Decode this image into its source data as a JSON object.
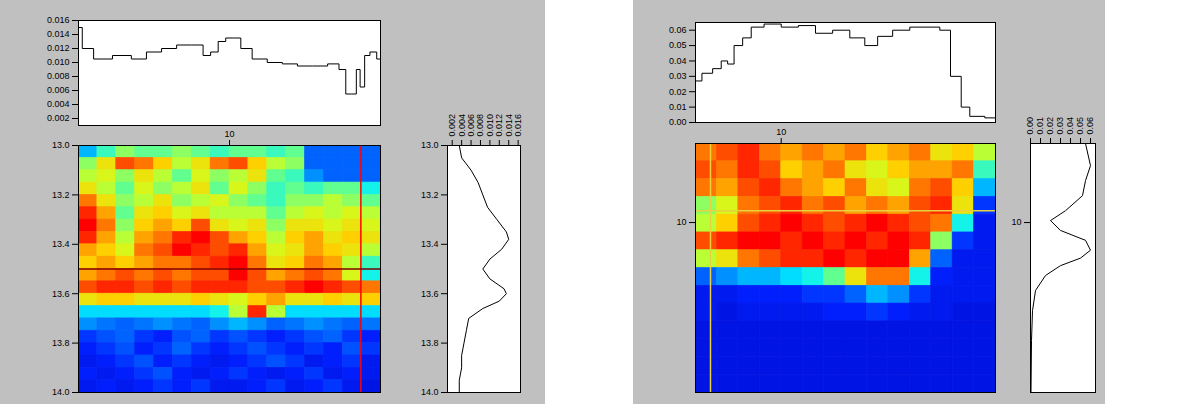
{
  "chart_data": [
    {
      "type": "line",
      "color": "#000000",
      "tick_labels": "y",
      "x": [
        0,
        0.5,
        1.5,
        3,
        4,
        5,
        6,
        7,
        8,
        8.5,
        9,
        9.5,
        10,
        10.5,
        11,
        12,
        13,
        14,
        15,
        16,
        17,
        17.5,
        17.9,
        18.3,
        18.5,
        18.8,
        19.1,
        19.5,
        20
      ],
      "values": [
        0.015,
        0.012,
        0.0105,
        0.011,
        0.0105,
        0.0115,
        0.012,
        0.0125,
        0.0125,
        0.011,
        0.0115,
        0.013,
        0.0135,
        0.0135,
        0.012,
        0.0105,
        0.01,
        0.0098,
        0.0095,
        0.0095,
        0.0098,
        0.009,
        0.0055,
        0.0055,
        0.009,
        0.0065,
        0.011,
        0.0115,
        0.0105
      ],
      "xlim": [
        0,
        20
      ],
      "ylim": [
        0.001,
        0.016
      ],
      "yticks": [
        0.002,
        0.004,
        0.006,
        0.008,
        {
          "value": 0.01,
          "label": "0.010"
        },
        0.012,
        0.014,
        0.016
      ]
    },
    {
      "type": "heatmap",
      "x_edges": [
        0,
        1.25,
        2.5,
        3.75,
        5,
        6.25,
        7.5,
        8.75,
        10,
        11.25,
        12.5,
        13.75,
        15,
        16.25,
        17.5,
        18.75,
        20
      ],
      "y_edges": [
        13,
        13.05,
        13.1,
        13.15,
        13.2,
        13.25,
        13.3,
        13.35,
        13.4,
        13.45,
        13.5,
        13.55,
        13.6,
        13.65,
        13.7,
        13.75,
        13.8,
        13.85,
        13.9,
        13.95,
        14
      ],
      "cells": [
        [
          0.3,
          0.45,
          0.55,
          0.5,
          0.5,
          0.55,
          0.5,
          0.45,
          0.5,
          0.5,
          0.45,
          0.5,
          0.2,
          0.2,
          0.2,
          0.2
        ],
        [
          0.55,
          0.7,
          0.9,
          0.85,
          0.75,
          0.6,
          0.7,
          0.85,
          0.9,
          0.75,
          0.6,
          0.55,
          0.2,
          0.2,
          0.2,
          0.2
        ],
        [
          0.6,
          0.65,
          0.55,
          0.7,
          0.6,
          0.5,
          0.65,
          0.55,
          0.6,
          0.7,
          0.5,
          0.45,
          0.25,
          0.2,
          0.2,
          0.2
        ],
        [
          0.7,
          0.6,
          0.5,
          0.65,
          0.55,
          0.6,
          0.7,
          0.5,
          0.65,
          0.55,
          0.45,
          0.5,
          0.45,
          0.5,
          0.5,
          0.4
        ],
        [
          0.85,
          0.7,
          0.55,
          0.6,
          0.7,
          0.55,
          0.6,
          0.65,
          0.55,
          0.5,
          0.45,
          0.55,
          0.55,
          0.6,
          0.55,
          0.5
        ],
        [
          0.95,
          0.8,
          0.5,
          0.7,
          0.75,
          0.65,
          0.7,
          0.6,
          0.6,
          0.6,
          0.5,
          0.6,
          0.65,
          0.6,
          0.65,
          0.6
        ],
        [
          1,
          0.85,
          0.55,
          0.75,
          0.8,
          0.75,
          0.9,
          0.7,
          0.65,
          0.7,
          0.55,
          0.7,
          0.7,
          0.65,
          0.7,
          0.65
        ],
        [
          0.95,
          0.8,
          0.6,
          0.8,
          0.85,
          0.95,
          1,
          0.9,
          0.8,
          0.75,
          0.6,
          0.75,
          0.8,
          0.7,
          0.75,
          0.7
        ],
        [
          0.8,
          0.75,
          0.65,
          0.85,
          0.9,
          1,
          0.95,
          0.9,
          0.95,
          0.8,
          0.65,
          0.7,
          0.8,
          0.75,
          0.7,
          0.6
        ],
        [
          0.75,
          0.8,
          0.75,
          0.8,
          0.85,
          0.85,
          0.9,
          0.95,
          1,
          0.85,
          0.7,
          0.75,
          0.85,
          0.8,
          0.6,
          0.45
        ],
        [
          0.8,
          0.85,
          0.9,
          0.85,
          0.9,
          0.85,
          0.9,
          0.9,
          1,
          0.9,
          0.8,
          0.85,
          0.9,
          0.85,
          0.65,
          0.4
        ],
        [
          0.9,
          0.95,
          0.95,
          0.9,
          0.95,
          0.9,
          0.95,
          0.95,
          0.95,
          0.9,
          0.9,
          0.95,
          1,
          0.95,
          0.9,
          0.85
        ],
        [
          0.7,
          0.75,
          0.75,
          0.7,
          0.7,
          0.7,
          0.75,
          0.7,
          0.65,
          0.75,
          0.8,
          0.7,
          0.7,
          0.75,
          0.7,
          0.75
        ],
        [
          0.35,
          0.35,
          0.35,
          0.35,
          0.35,
          0.35,
          0.35,
          0.4,
          0.6,
          0.95,
          0.6,
          0.35,
          0.35,
          0.35,
          0.35,
          0.35
        ],
        [
          0.25,
          0.22,
          0.2,
          0.22,
          0.25,
          0.22,
          0.2,
          0.25,
          0.3,
          0.25,
          0.2,
          0.22,
          0.25,
          0.22,
          0.2,
          0.22
        ],
        [
          0.15,
          0.18,
          0.2,
          0.15,
          0.12,
          0.18,
          0.2,
          0.15,
          0.18,
          0.15,
          0.12,
          0.15,
          0.18,
          0.2,
          0.15,
          0.12
        ],
        [
          0.12,
          0.15,
          0.18,
          0.12,
          0.15,
          0.2,
          0.15,
          0.12,
          0.15,
          0.18,
          0.15,
          0.12,
          0.15,
          0.12,
          0.18,
          0.15
        ],
        [
          0.1,
          0.12,
          0.15,
          0.18,
          0.12,
          0.15,
          0.12,
          0.1,
          0.12,
          0.15,
          0.18,
          0.15,
          0.1,
          0.12,
          0.15,
          0.1
        ],
        [
          0.12,
          0.1,
          0.12,
          0.15,
          0.18,
          0.12,
          0.1,
          0.12,
          0.15,
          0.12,
          0.1,
          0.12,
          0.15,
          0.1,
          0.12,
          0.1
        ],
        [
          0.1,
          0.12,
          0.1,
          0.12,
          0.15,
          0.12,
          0.15,
          0.1,
          0.1,
          0.12,
          0.15,
          0.1,
          0.12,
          0.15,
          0.1,
          0.08
        ]
      ],
      "zlim": [
        0,
        1
      ],
      "xlim": [
        0,
        20
      ],
      "xticks": [
        10
      ],
      "ylim": [
        13,
        14
      ],
      "yticks": [
        {
          "value": 13,
          "label": "13.0"
        },
        13.2,
        13.4,
        13.6,
        13.8,
        {
          "value": 14,
          "label": "14.0"
        }
      ],
      "cursor": {
        "x": 18.7,
        "y": 13.5
      }
    },
    {
      "type": "line",
      "color": "#000000",
      "orientation": "horizontal",
      "y": [
        13.0,
        13.05,
        13.1,
        13.15,
        13.2,
        13.25,
        13.3,
        13.35,
        13.38,
        13.42,
        13.46,
        13.5,
        13.54,
        13.58,
        13.6,
        13.63,
        13.66,
        13.7,
        13.75,
        13.8,
        13.85,
        13.9,
        13.95,
        14.0
      ],
      "values": [
        0.0035,
        0.004,
        0.006,
        0.0075,
        0.0085,
        0.0095,
        0.0115,
        0.0135,
        0.014,
        0.0125,
        0.01,
        0.0085,
        0.01,
        0.013,
        0.0135,
        0.012,
        0.0085,
        0.0055,
        0.005,
        0.0045,
        0.004,
        0.004,
        0.0035,
        0.0035
      ],
      "xlim": [
        0.001,
        0.0165
      ],
      "xticks": [
        0.002,
        0.004,
        0.006,
        0.008,
        {
          "value": 0.01,
          "label": "0.010"
        },
        0.012,
        0.014,
        0.016
      ],
      "ylim": [
        13,
        14
      ],
      "yticks": [
        {
          "value": 13,
          "label": "13.0"
        },
        13.2,
        13.4,
        13.6,
        13.8,
        {
          "value": 14,
          "label": "14.0"
        }
      ]
    },
    {
      "type": "line",
      "color": "#000000",
      "tick_labels": "y",
      "x": [
        0,
        1.5,
        2.5,
        3.5,
        4,
        5,
        6,
        7,
        9,
        11,
        13,
        15,
        17,
        19,
        20.5,
        22,
        24,
        26,
        28,
        29,
        30.5,
        31.5,
        32.5,
        35
      ],
      "values": [
        0.027,
        0.032,
        0.035,
        0.04,
        0.038,
        0.05,
        0.055,
        0.062,
        0.064,
        0.062,
        0.063,
        0.058,
        0.06,
        0.055,
        0.05,
        0.056,
        0.06,
        0.062,
        0.062,
        0.06,
        0.03,
        0.01,
        0.004,
        0.003
      ],
      "xlim": [
        0,
        35
      ],
      "ylim": [
        0,
        0.065
      ],
      "yticks": [
        {
          "value": 0,
          "label": "0.00"
        },
        0.01,
        0.02,
        0.03,
        0.04,
        0.05,
        0.06
      ]
    },
    {
      "type": "heatmap",
      "x_edges": [
        0,
        2.5,
        5,
        7.5,
        10,
        12.5,
        15,
        17.5,
        20,
        22.5,
        25,
        27.5,
        30,
        32.5,
        35
      ],
      "y_edges": [
        8,
        8.45,
        8.9,
        9.35,
        9.8,
        10.25,
        10.7,
        11.15,
        11.6,
        12.05,
        12.5,
        12.95,
        13.4,
        13.85,
        14.3
      ],
      "cells": [
        [
          0.85,
          0.9,
          0.95,
          0.85,
          0.8,
          0.85,
          0.8,
          0.85,
          0.75,
          0.8,
          0.85,
          0.7,
          0.75,
          0.6
        ],
        [
          0.9,
          0.85,
          0.95,
          0.9,
          0.75,
          0.8,
          0.85,
          0.7,
          0.65,
          0.75,
          0.8,
          0.8,
          0.85,
          0.45
        ],
        [
          0.85,
          0.8,
          0.9,
          0.95,
          0.85,
          0.8,
          0.75,
          0.85,
          0.7,
          0.65,
          0.85,
          0.9,
          0.75,
          0.3
        ],
        [
          0.55,
          0.65,
          0.85,
          0.9,
          0.95,
          0.85,
          0.9,
          0.8,
          0.85,
          0.8,
          0.9,
          0.95,
          0.7,
          0.15
        ],
        [
          0.6,
          0.75,
          0.9,
          0.95,
          1,
          0.95,
          0.9,
          0.95,
          1,
          0.95,
          0.9,
          0.85,
          0.4,
          0.1
        ],
        [
          0.9,
          0.95,
          1,
          1,
          0.95,
          1,
          0.95,
          1,
          0.95,
          1,
          0.95,
          0.55,
          0.15,
          0.1
        ],
        [
          0.6,
          0.7,
          0.85,
          0.9,
          0.95,
          0.95,
          1,
          0.95,
          1,
          1,
          0.8,
          0.2,
          0.1,
          0.1
        ],
        [
          0.2,
          0.25,
          0.3,
          0.3,
          0.35,
          0.4,
          0.5,
          0.7,
          0.85,
          0.85,
          0.4,
          0.12,
          0.1,
          0.1
        ],
        [
          0.1,
          0.1,
          0.12,
          0.12,
          0.12,
          0.15,
          0.15,
          0.2,
          0.3,
          0.25,
          0.15,
          0.1,
          0.1,
          0.1
        ],
        [
          0.1,
          0.08,
          0.1,
          0.1,
          0.1,
          0.1,
          0.12,
          0.12,
          0.15,
          0.12,
          0.1,
          0.1,
          0.08,
          0.08
        ],
        [
          0.08,
          0.08,
          0.08,
          0.08,
          0.08,
          0.08,
          0.08,
          0.08,
          0.08,
          0.08,
          0.08,
          0.08,
          0.08,
          0.08
        ],
        [
          0.08,
          0.08,
          0.08,
          0.08,
          0.08,
          0.08,
          0.08,
          0.08,
          0.08,
          0.08,
          0.08,
          0.08,
          0.08,
          0.08
        ],
        [
          0.08,
          0.08,
          0.08,
          0.08,
          0.08,
          0.08,
          0.08,
          0.08,
          0.08,
          0.08,
          0.08,
          0.08,
          0.08,
          0.08
        ],
        [
          0.08,
          0.08,
          0.08,
          0.08,
          0.08,
          0.08,
          0.08,
          0.08,
          0.08,
          0.08,
          0.08,
          0.08,
          0.08,
          0.08
        ]
      ],
      "zlim": [
        0,
        1
      ],
      "xlim": [
        0,
        35
      ],
      "xticks": [
        10
      ],
      "ylim": [
        8,
        14.3
      ],
      "yticks": [
        10
      ],
      "cursor": {
        "x": 1.75,
        "y": 9.7
      }
    },
    {
      "type": "line",
      "color": "#000000",
      "orientation": "horizontal",
      "y": [
        8,
        8.56,
        8.94,
        9.32,
        9.7,
        9.95,
        10.2,
        10.45,
        10.7,
        10.9,
        11.09,
        11.34,
        11.72,
        12.23,
        12.98,
        14.3
      ],
      "values": [
        0.055,
        0.06,
        0.055,
        0.052,
        0.035,
        0.02,
        0.03,
        0.055,
        0.06,
        0.05,
        0.03,
        0.015,
        0.005,
        0.002,
        0.001,
        0.0005
      ],
      "xlim": [
        0,
        0.065
      ],
      "xticks": [
        {
          "value": 0,
          "label": "0.00"
        },
        0.01,
        0.02,
        0.03,
        0.04,
        0.05,
        0.06
      ],
      "ylim": [
        8,
        14.3
      ],
      "yticks": [
        10
      ]
    }
  ]
}
